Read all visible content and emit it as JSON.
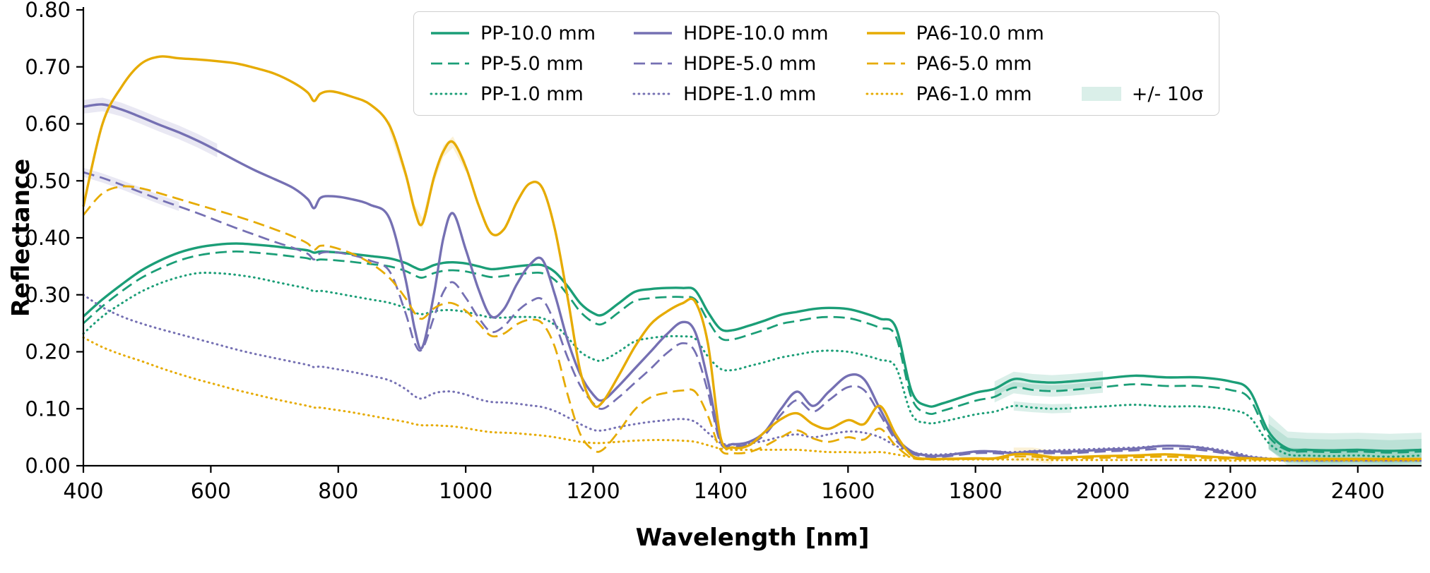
{
  "chart_data": {
    "type": "line",
    "title": "",
    "xlabel": "Wavelength [nm]",
    "ylabel": "Reflectance",
    "xlim": [
      400,
      2500
    ],
    "ylim": [
      0.0,
      0.8
    ],
    "xticks": [
      400,
      600,
      800,
      1000,
      1200,
      1400,
      1600,
      1800,
      2000,
      2200,
      2400
    ],
    "yticks": [
      0.0,
      0.1,
      0.2,
      0.3,
      0.4,
      0.5,
      0.6,
      0.7,
      0.8
    ],
    "grid": false,
    "legend_position": "upper center",
    "colors": {
      "PP": "#1b9e77",
      "HDPE": "#7570b3",
      "PA6": "#e6ab02"
    },
    "x": [
      400,
      430,
      460,
      490,
      520,
      550,
      580,
      610,
      640,
      670,
      700,
      730,
      752,
      762,
      772,
      790,
      820,
      850,
      880,
      905,
      920,
      932,
      950,
      965,
      980,
      1000,
      1020,
      1040,
      1060,
      1080,
      1100,
      1120,
      1140,
      1160,
      1180,
      1200,
      1215,
      1240,
      1265,
      1290,
      1315,
      1340,
      1360,
      1380,
      1400,
      1420,
      1445,
      1470,
      1495,
      1520,
      1545,
      1570,
      1600,
      1625,
      1650,
      1675,
      1700,
      1725,
      1750,
      1800,
      1830,
      1860,
      1890,
      1920,
      1950,
      2000,
      2050,
      2100,
      2150,
      2200,
      2230,
      2260,
      2290,
      2320,
      2360,
      2400,
      2450,
      2500
    ],
    "series": [
      {
        "name": "PP-10.0 mm",
        "color": "#1b9e77",
        "style": "solid",
        "values": [
          0.262,
          0.292,
          0.318,
          0.342,
          0.36,
          0.374,
          0.383,
          0.388,
          0.39,
          0.388,
          0.385,
          0.381,
          0.378,
          0.374,
          0.376,
          0.375,
          0.372,
          0.368,
          0.364,
          0.356,
          0.348,
          0.344,
          0.352,
          0.356,
          0.357,
          0.355,
          0.35,
          0.345,
          0.347,
          0.35,
          0.352,
          0.352,
          0.34,
          0.315,
          0.285,
          0.268,
          0.265,
          0.285,
          0.305,
          0.31,
          0.312,
          0.312,
          0.308,
          0.27,
          0.24,
          0.238,
          0.246,
          0.255,
          0.265,
          0.27,
          0.275,
          0.277,
          0.275,
          0.268,
          0.258,
          0.243,
          0.13,
          0.105,
          0.11,
          0.128,
          0.135,
          0.152,
          0.148,
          0.146,
          0.148,
          0.153,
          0.158,
          0.155,
          0.155,
          0.148,
          0.132,
          0.06,
          0.03,
          0.028,
          0.027,
          0.028,
          0.026,
          0.028
        ]
      },
      {
        "name": "PP-5.0 mm",
        "color": "#1b9e77",
        "style": "dashed",
        "values": [
          0.25,
          0.28,
          0.306,
          0.329,
          0.346,
          0.36,
          0.369,
          0.374,
          0.376,
          0.374,
          0.371,
          0.367,
          0.364,
          0.36,
          0.362,
          0.361,
          0.358,
          0.354,
          0.35,
          0.342,
          0.334,
          0.33,
          0.338,
          0.342,
          0.343,
          0.341,
          0.336,
          0.331,
          0.333,
          0.336,
          0.338,
          0.338,
          0.326,
          0.3,
          0.27,
          0.252,
          0.249,
          0.269,
          0.289,
          0.294,
          0.296,
          0.296,
          0.292,
          0.255,
          0.224,
          0.222,
          0.23,
          0.239,
          0.249,
          0.254,
          0.259,
          0.261,
          0.259,
          0.252,
          0.242,
          0.227,
          0.118,
          0.092,
          0.097,
          0.114,
          0.121,
          0.137,
          0.133,
          0.131,
          0.133,
          0.138,
          0.143,
          0.14,
          0.14,
          0.133,
          0.118,
          0.052,
          0.027,
          0.025,
          0.024,
          0.025,
          0.023,
          0.025
        ]
      },
      {
        "name": "PP-1.0 mm",
        "color": "#1b9e77",
        "style": "dotted",
        "values": [
          0.232,
          0.262,
          0.285,
          0.305,
          0.32,
          0.331,
          0.338,
          0.338,
          0.335,
          0.33,
          0.323,
          0.316,
          0.311,
          0.306,
          0.307,
          0.304,
          0.298,
          0.292,
          0.286,
          0.277,
          0.269,
          0.266,
          0.271,
          0.273,
          0.273,
          0.27,
          0.265,
          0.26,
          0.26,
          0.261,
          0.261,
          0.259,
          0.247,
          0.225,
          0.2,
          0.187,
          0.185,
          0.2,
          0.218,
          0.224,
          0.227,
          0.227,
          0.223,
          0.192,
          0.17,
          0.168,
          0.175,
          0.182,
          0.19,
          0.195,
          0.2,
          0.202,
          0.2,
          0.194,
          0.186,
          0.173,
          0.09,
          0.075,
          0.078,
          0.09,
          0.095,
          0.105,
          0.102,
          0.1,
          0.101,
          0.104,
          0.107,
          0.104,
          0.104,
          0.098,
          0.086,
          0.04,
          0.02,
          0.018,
          0.017,
          0.018,
          0.016,
          0.018
        ]
      },
      {
        "name": "HDPE-10.0 mm",
        "color": "#7570b3",
        "style": "solid",
        "values": [
          0.63,
          0.634,
          0.625,
          0.612,
          0.598,
          0.585,
          0.57,
          0.553,
          0.535,
          0.518,
          0.503,
          0.487,
          0.468,
          0.452,
          0.47,
          0.473,
          0.468,
          0.458,
          0.435,
          0.33,
          0.24,
          0.208,
          0.3,
          0.4,
          0.443,
          0.38,
          0.31,
          0.262,
          0.275,
          0.318,
          0.352,
          0.362,
          0.3,
          0.22,
          0.16,
          0.125,
          0.115,
          0.14,
          0.17,
          0.2,
          0.23,
          0.252,
          0.235,
          0.15,
          0.045,
          0.038,
          0.042,
          0.06,
          0.1,
          0.13,
          0.105,
          0.13,
          0.158,
          0.152,
          0.1,
          0.05,
          0.025,
          0.018,
          0.018,
          0.025,
          0.025,
          0.022,
          0.025,
          0.025,
          0.025,
          0.028,
          0.03,
          0.035,
          0.032,
          0.022,
          0.015,
          0.012,
          0.01,
          0.01,
          0.01,
          0.01,
          0.01,
          0.01
        ]
      },
      {
        "name": "HDPE-5.0 mm",
        "color": "#7570b3",
        "style": "dashed",
        "values": [
          0.515,
          0.505,
          0.493,
          0.48,
          0.467,
          0.455,
          0.443,
          0.43,
          0.417,
          0.405,
          0.393,
          0.382,
          0.372,
          0.362,
          0.373,
          0.375,
          0.37,
          0.36,
          0.342,
          0.27,
          0.215,
          0.205,
          0.26,
          0.305,
          0.322,
          0.295,
          0.26,
          0.235,
          0.245,
          0.27,
          0.287,
          0.292,
          0.25,
          0.19,
          0.14,
          0.11,
          0.1,
          0.12,
          0.145,
          0.17,
          0.197,
          0.215,
          0.2,
          0.13,
          0.04,
          0.034,
          0.038,
          0.055,
          0.09,
          0.115,
          0.095,
          0.115,
          0.138,
          0.133,
          0.09,
          0.045,
          0.022,
          0.016,
          0.016,
          0.022,
          0.022,
          0.02,
          0.022,
          0.022,
          0.022,
          0.025,
          0.027,
          0.03,
          0.028,
          0.02,
          0.013,
          0.011,
          0.009,
          0.009,
          0.009,
          0.009,
          0.009,
          0.009
        ]
      },
      {
        "name": "HDPE-1.0 mm",
        "color": "#7570b3",
        "style": "dotted",
        "values": [
          0.3,
          0.278,
          0.262,
          0.25,
          0.24,
          0.231,
          0.222,
          0.213,
          0.204,
          0.196,
          0.189,
          0.182,
          0.177,
          0.173,
          0.174,
          0.171,
          0.165,
          0.158,
          0.15,
          0.135,
          0.122,
          0.118,
          0.127,
          0.13,
          0.13,
          0.125,
          0.117,
          0.112,
          0.111,
          0.109,
          0.106,
          0.103,
          0.096,
          0.085,
          0.073,
          0.063,
          0.062,
          0.068,
          0.073,
          0.077,
          0.08,
          0.082,
          0.077,
          0.058,
          0.04,
          0.037,
          0.039,
          0.044,
          0.051,
          0.055,
          0.05,
          0.055,
          0.06,
          0.058,
          0.05,
          0.035,
          0.024,
          0.02,
          0.02,
          0.024,
          0.025,
          0.024,
          0.026,
          0.027,
          0.028,
          0.03,
          0.032,
          0.035,
          0.033,
          0.025,
          0.017,
          0.013,
          0.01,
          0.01,
          0.01,
          0.01,
          0.01,
          0.01
        ]
      },
      {
        "name": "PA6-10.0 mm",
        "color": "#e6ab02",
        "style": "solid",
        "values": [
          0.455,
          0.6,
          0.665,
          0.705,
          0.718,
          0.715,
          0.713,
          0.71,
          0.706,
          0.698,
          0.688,
          0.672,
          0.655,
          0.64,
          0.653,
          0.657,
          0.648,
          0.634,
          0.598,
          0.515,
          0.448,
          0.425,
          0.505,
          0.552,
          0.568,
          0.525,
          0.458,
          0.408,
          0.415,
          0.462,
          0.495,
          0.488,
          0.415,
          0.295,
          0.165,
          0.108,
          0.112,
          0.158,
          0.208,
          0.248,
          0.27,
          0.285,
          0.288,
          0.215,
          0.05,
          0.032,
          0.036,
          0.06,
          0.082,
          0.092,
          0.073,
          0.065,
          0.08,
          0.073,
          0.105,
          0.055,
          0.018,
          0.012,
          0.012,
          0.013,
          0.013,
          0.02,
          0.02,
          0.015,
          0.015,
          0.017,
          0.018,
          0.02,
          0.017,
          0.014,
          0.013,
          0.012,
          0.012,
          0.012,
          0.012,
          0.012,
          0.012,
          0.012
        ]
      },
      {
        "name": "PA6-5.0 mm",
        "color": "#e6ab02",
        "style": "dashed",
        "values": [
          0.44,
          0.478,
          0.49,
          0.487,
          0.478,
          0.468,
          0.458,
          0.448,
          0.438,
          0.427,
          0.415,
          0.402,
          0.39,
          0.379,
          0.386,
          0.384,
          0.373,
          0.356,
          0.33,
          0.295,
          0.268,
          0.258,
          0.276,
          0.284,
          0.285,
          0.272,
          0.25,
          0.228,
          0.232,
          0.248,
          0.256,
          0.25,
          0.208,
          0.125,
          0.055,
          0.028,
          0.028,
          0.06,
          0.098,
          0.12,
          0.128,
          0.132,
          0.13,
          0.088,
          0.028,
          0.022,
          0.024,
          0.035,
          0.05,
          0.062,
          0.048,
          0.042,
          0.05,
          0.046,
          0.065,
          0.035,
          0.014,
          0.011,
          0.011,
          0.012,
          0.012,
          0.016,
          0.016,
          0.013,
          0.013,
          0.014,
          0.015,
          0.016,
          0.014,
          0.012,
          0.011,
          0.011,
          0.011,
          0.011,
          0.011,
          0.011,
          0.011,
          0.011
        ]
      },
      {
        "name": "PA6-1.0 mm",
        "color": "#e6ab02",
        "style": "dotted",
        "values": [
          0.225,
          0.208,
          0.195,
          0.184,
          0.172,
          0.161,
          0.151,
          0.142,
          0.133,
          0.125,
          0.117,
          0.11,
          0.105,
          0.102,
          0.102,
          0.099,
          0.094,
          0.088,
          0.082,
          0.077,
          0.073,
          0.071,
          0.071,
          0.07,
          0.069,
          0.066,
          0.062,
          0.059,
          0.058,
          0.057,
          0.055,
          0.053,
          0.05,
          0.046,
          0.042,
          0.04,
          0.04,
          0.042,
          0.044,
          0.045,
          0.045,
          0.044,
          0.042,
          0.036,
          0.03,
          0.028,
          0.028,
          0.028,
          0.028,
          0.028,
          0.026,
          0.024,
          0.024,
          0.023,
          0.024,
          0.02,
          0.015,
          0.012,
          0.011,
          0.011,
          0.011,
          0.011,
          0.011,
          0.01,
          0.01,
          0.01,
          0.01,
          0.01,
          0.01,
          0.009,
          0.009,
          0.009,
          0.009,
          0.009,
          0.009,
          0.009,
          0.009,
          0.009
        ]
      }
    ],
    "band": {
      "label": "+/- 10σ",
      "legend_color": "#1b9e77",
      "alpha": 0.16,
      "segments": [
        {
          "series": "HDPE-10.0 mm",
          "from": 400,
          "to": 620,
          "delta": 0.012
        },
        {
          "series": "HDPE-5.0 mm",
          "from": 400,
          "to": 560,
          "delta": 0.008
        },
        {
          "series": "PA6-10.0 mm",
          "from": 860,
          "to": 1010,
          "delta": 0.01
        },
        {
          "series": "PA6-10.0 mm",
          "from": 1860,
          "to": 1930,
          "delta": 0.012
        },
        {
          "series": "PP-10.0 mm",
          "from": 1820,
          "to": 2000,
          "delta": 0.013
        },
        {
          "series": "PP-5.0 mm",
          "from": 1820,
          "to": 2000,
          "delta": 0.01
        },
        {
          "series": "PP-1.0 mm",
          "from": 1860,
          "to": 1960,
          "delta": 0.008
        },
        {
          "series": "PP-10.0 mm",
          "from": 2250,
          "to": 2500,
          "delta": 0.03
        },
        {
          "series": "PP-5.0 mm",
          "from": 2250,
          "to": 2500,
          "delta": 0.022
        },
        {
          "series": "PP-1.0 mm",
          "from": 2260,
          "to": 2500,
          "delta": 0.012
        }
      ]
    },
    "legend_columns": [
      [
        "PP-10.0 mm",
        "PP-5.0 mm",
        "PP-1.0 mm"
      ],
      [
        "HDPE-10.0 mm",
        "HDPE-5.0 mm",
        "HDPE-1.0 mm"
      ],
      [
        "PA6-10.0 mm",
        "PA6-5.0 mm",
        "PA6-1.0 mm"
      ]
    ]
  }
}
